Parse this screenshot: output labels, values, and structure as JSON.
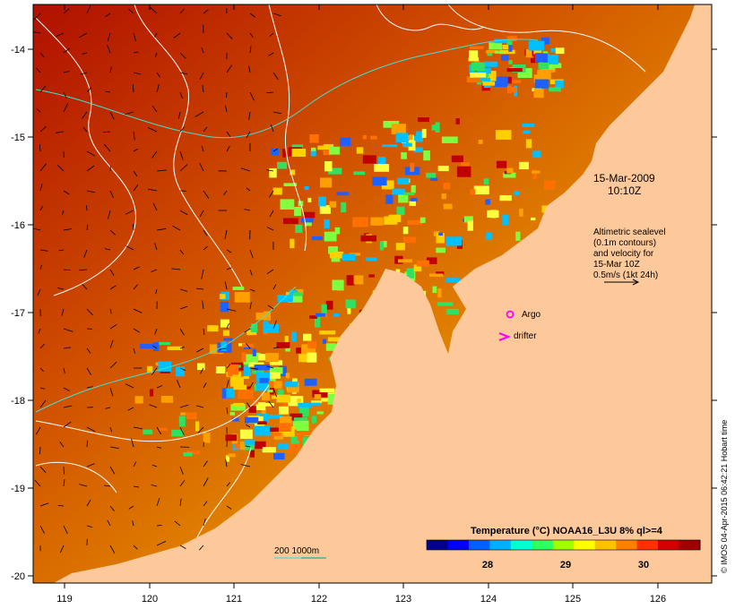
{
  "map": {
    "date_label": "15-Mar-2009",
    "time_label": "10:10Z",
    "altimetry_note": [
      "Altimetric sealevel",
      "(0.1m contours)",
      "and velocity for",
      "15-Mar 10Z",
      "0.5m/s (1kt 24h)"
    ],
    "legend": {
      "argo_label": "Argo",
      "drifter_label": "drifter",
      "isobath_label": "200  1000m"
    },
    "colorbar": {
      "title": "Temperature (°C) NOAA16_L3U 8% ql>=4",
      "ticks": [
        "28",
        "29",
        "30"
      ],
      "colors": [
        "#00008b",
        "#0000ff",
        "#0060ff",
        "#00b0ff",
        "#00ffd0",
        "#30ff60",
        "#a0ff00",
        "#ffff00",
        "#ffc000",
        "#ff8000",
        "#ff3000",
        "#d00000",
        "#a00000"
      ]
    },
    "credit": "© IMOS 04-Apr-2015 06:42:21 Hobart time",
    "axes": {
      "lon_ticks": [
        "119",
        "120",
        "121",
        "122",
        "123",
        "124",
        "125",
        "126"
      ],
      "lat_ticks": [
        "-14",
        "-15",
        "-16",
        "-17",
        "-18",
        "-19",
        "-20"
      ]
    },
    "colors": {
      "land": "#fdc99a",
      "contour": "#ffffff",
      "isobath": "#40e0d0",
      "argo": "#ff00ff",
      "drifter": "#ff00ff"
    }
  }
}
